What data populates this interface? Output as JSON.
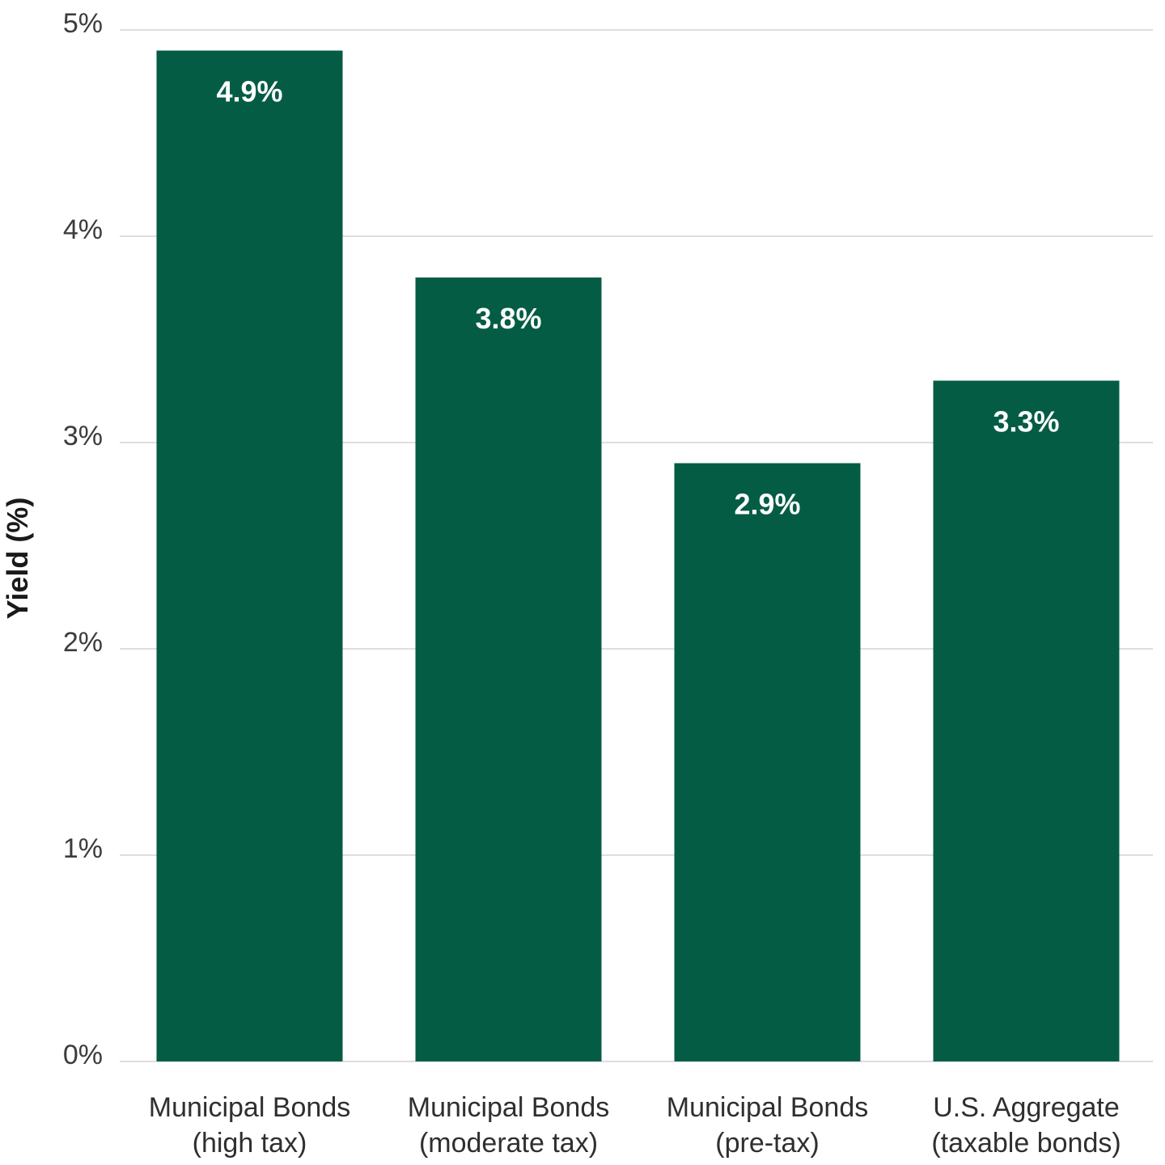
{
  "chart_data": {
    "type": "bar",
    "categories": [
      [
        "Municipal Bonds",
        "(high tax)"
      ],
      [
        "Municipal Bonds",
        "(moderate tax)"
      ],
      [
        "Municipal Bonds",
        "(pre-tax)"
      ],
      [
        "U.S. Aggregate",
        "(taxable bonds)"
      ]
    ],
    "values": [
      4.9,
      3.8,
      2.9,
      3.3
    ],
    "value_labels": [
      "4.9%",
      "3.8%",
      "2.9%",
      "3.3%"
    ],
    "ylabel": "Yield (%)",
    "ylim": [
      0,
      5
    ],
    "yticks": [
      0,
      1,
      2,
      3,
      4,
      5
    ],
    "ytick_labels": [
      "0%",
      "1%",
      "2%",
      "3%",
      "4%",
      "5%"
    ],
    "grid": true,
    "bar_color": "#045c44"
  }
}
